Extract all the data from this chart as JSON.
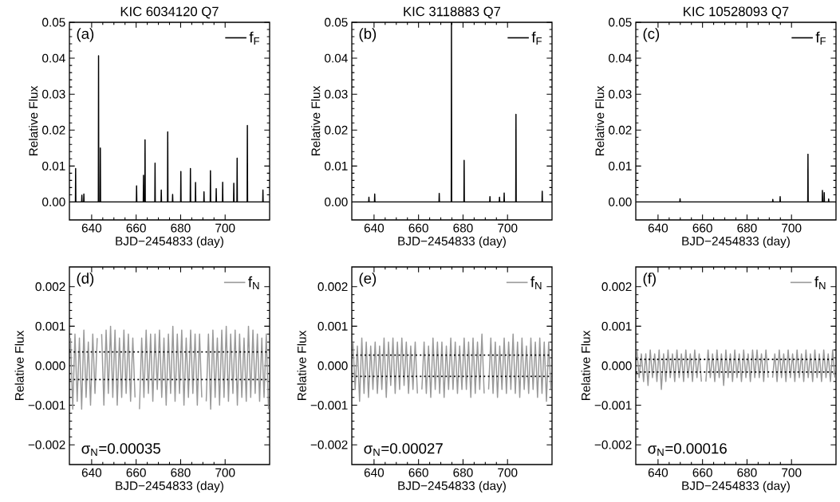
{
  "chart_data": [
    {
      "type": "line",
      "title": "KIC 6034120  Q7",
      "xlabel": "BJD−2454833 (day)",
      "ylabel": "Relative Flux",
      "xlim": [
        630,
        720
      ],
      "ylim": [
        -0.005,
        0.05
      ],
      "xticks": [
        640,
        660,
        680,
        700
      ],
      "yticks": [
        {
          "value": 0,
          "label": "0.00"
        },
        {
          "value": 0.01,
          "label": "0.01"
        },
        {
          "value": 0.02,
          "label": "0.02"
        },
        {
          "value": 0.03,
          "label": "0.03"
        },
        {
          "value": 0.04,
          "label": "0.04"
        },
        {
          "value": 0.05,
          "label": "0.05"
        }
      ],
      "legend": "top right",
      "annotations": [
        "(a)"
      ],
      "x": [
        630.2,
        632.7,
        632.8,
        632.9,
        635.5,
        635.6,
        635.7,
        636.4,
        636.5,
        636.6,
        643.0,
        643.1,
        643.2,
        643.8,
        643.9,
        644.0,
        660.1,
        660.2,
        660.3,
        663.2,
        663.3,
        663.4,
        663.9,
        664.0,
        664.1,
        668.4,
        668.5,
        668.6,
        671.2,
        671.3,
        671.4,
        674.1,
        674.2,
        674.3,
        676.3,
        676.4,
        676.5,
        680.0,
        680.1,
        680.2,
        684.3,
        684.4,
        684.5,
        686.6,
        686.7,
        686.8,
        690.4,
        690.5,
        690.6,
        693.3,
        693.4,
        693.5,
        695.9,
        696.0,
        696.1,
        698.8,
        698.9,
        699.0,
        703.8,
        703.9,
        704.0,
        705.3,
        705.4,
        705.5,
        709.9,
        710.0,
        710.1,
        716.9,
        717.0,
        717.1,
        719.8
      ],
      "series": [
        {
          "name": "f$_{F}$",
          "color": "#000000",
          "values": [
            0,
            0,
            0.0093,
            0,
            0,
            0.0019,
            0,
            0,
            0.0022,
            0,
            0,
            0.0407,
            0,
            0,
            0.015,
            0,
            0,
            0.0045,
            0,
            0,
            0.0074,
            0,
            0,
            0.0173,
            0,
            0,
            0.0108,
            0,
            0,
            0.0033,
            0,
            0,
            0.0195,
            0,
            0,
            0.0021,
            0,
            0,
            0.0085,
            0,
            0,
            0.0093,
            0,
            0,
            0.0054,
            0,
            0,
            0.0028,
            0,
            0,
            0.0087,
            0,
            0,
            0.0037,
            0,
            0,
            0.0055,
            0,
            0,
            0.0052,
            0,
            0,
            0.0122,
            0,
            0,
            0.0213,
            0,
            0,
            0.0033,
            0,
            0
          ]
        }
      ]
    },
    {
      "type": "line",
      "title": "KIC 3118883  Q7",
      "xlabel": "BJD−2454833 (day)",
      "ylabel": "Relative Flux",
      "xlim": [
        630,
        720
      ],
      "ylim": [
        -0.005,
        0.05
      ],
      "xticks": [
        640,
        660,
        680,
        700
      ],
      "yticks": [
        {
          "value": 0,
          "label": "0.00"
        },
        {
          "value": 0.01,
          "label": "0.01"
        },
        {
          "value": 0.02,
          "label": "0.02"
        },
        {
          "value": 0.03,
          "label": "0.03"
        },
        {
          "value": 0.04,
          "label": "0.04"
        },
        {
          "value": 0.05,
          "label": "0.05"
        }
      ],
      "legend": "top right",
      "annotations": [
        "(b)"
      ],
      "x": [
        630.2,
        637.6,
        637.7,
        637.8,
        640.2,
        640.3,
        640.4,
        669.2,
        669.3,
        669.4,
        674.7,
        674.8,
        674.9,
        680.4,
        680.5,
        680.6,
        692.0,
        692.1,
        692.2,
        696.3,
        696.4,
        696.5,
        698.4,
        698.5,
        698.6,
        703.7,
        703.8,
        703.9,
        715.5,
        715.6,
        715.7,
        719.8
      ],
      "series": [
        {
          "name": "f$_{F}$",
          "color": "#000000",
          "values": [
            0,
            0,
            0.0013,
            0,
            0,
            0.0022,
            0,
            0,
            0.0024,
            0,
            0,
            0.05,
            0,
            0,
            0.0116,
            0,
            0,
            0.0015,
            0,
            0,
            0.0013,
            0,
            0,
            0.0025,
            0,
            0,
            0.0244,
            0,
            0,
            0.003,
            0,
            0
          ]
        }
      ]
    },
    {
      "type": "line",
      "title": "KIC 10528093  Q7",
      "xlabel": "BJD−2454833 (day)",
      "ylabel": "Relative Flux",
      "xlim": [
        630,
        720
      ],
      "ylim": [
        -0.005,
        0.05
      ],
      "xticks": [
        640,
        660,
        680,
        700
      ],
      "yticks": [
        {
          "value": 0,
          "label": "0.00"
        },
        {
          "value": 0.01,
          "label": "0.01"
        },
        {
          "value": 0.02,
          "label": "0.02"
        },
        {
          "value": 0.03,
          "label": "0.03"
        },
        {
          "value": 0.04,
          "label": "0.04"
        },
        {
          "value": 0.05,
          "label": "0.05"
        }
      ],
      "legend": "top right",
      "annotations": [
        "(c)"
      ],
      "x": [
        630.2,
        649.8,
        649.9,
        650.0,
        691.5,
        691.6,
        691.7,
        694.8,
        694.9,
        695.0,
        707.3,
        707.4,
        707.5,
        713.8,
        713.9,
        714.0,
        714.6,
        714.7,
        714.8,
        716.6,
        716.7,
        716.8,
        719.8
      ],
      "series": [
        {
          "name": "f$_{F}$",
          "color": "#000000",
          "values": [
            0,
            0,
            0.0009,
            0,
            0,
            0.0007,
            0,
            0,
            0.0015,
            0,
            0,
            0.0133,
            0,
            0,
            0.0032,
            0,
            0,
            0.0026,
            0,
            0,
            0.0008,
            0,
            0
          ]
        }
      ]
    },
    {
      "type": "line",
      "xlabel": "BJD−2454833 (day)",
      "ylabel": "Relative Flux",
      "xlim": [
        630,
        720
      ],
      "ylim": [
        -0.0025,
        0.0025
      ],
      "xticks": [
        640,
        660,
        680,
        700
      ],
      "yticks": [
        {
          "value": -0.002,
          "label": "−0.002"
        },
        {
          "value": -0.001,
          "label": "−0.001"
        },
        {
          "value": 0,
          "label": "0.000"
        },
        {
          "value": 0.001,
          "label": "0.001"
        },
        {
          "value": 0.002,
          "label": "0.002"
        }
      ],
      "legend": "top right",
      "annotations": [
        "(d)",
        "σ$_{N}$=0.00035"
      ],
      "ref_lines": [
        {
          "axis": "y",
          "value": 0.00035,
          "color": "#000000",
          "line_style": "dotted"
        },
        {
          "axis": "y",
          "value": -0.00035,
          "color": "#000000",
          "line_style": "dotted"
        }
      ],
      "x": [
        630.5,
        631.5,
        632.5,
        633.5,
        634.5,
        635.5,
        636.5,
        637.5,
        638.5,
        639.5,
        640.5,
        641.5,
        642.5,
        643.5,
        644.5,
        645.5,
        646.5,
        647.5,
        648.5,
        649.5,
        650.5,
        651.5,
        652.5,
        653.5,
        654.5,
        655.5,
        656.5,
        657.5,
        658.5,
        659.5,
        660.5,
        661.5,
        662.5,
        663.5,
        664.5,
        665.5,
        666.5,
        667.5,
        668.5,
        669.5,
        670.5,
        671.5,
        672.5,
        673.5,
        674.5,
        675.5,
        676.5,
        677.5,
        678.5,
        679.5,
        680.5,
        681.5,
        682.5,
        683.5,
        684.5,
        685.5,
        686.5,
        687.5,
        688.5,
        689.5,
        690.5,
        691.5,
        692.5,
        693.5,
        694.5,
        695.5,
        696.5,
        697.5,
        698.5,
        699.5,
        700.5,
        701.5,
        702.5,
        703.5,
        704.5,
        705.5,
        706.5,
        707.5,
        708.5,
        709.5,
        710.5,
        711.5,
        712.5,
        713.5,
        714.5,
        715.5,
        716.5,
        717.5,
        718.5,
        719.5
      ],
      "series": [
        {
          "name": "f$_{N}$",
          "color": "#999999",
          "values": [
            0.0007,
            -0.0011,
            0.0008,
            -0.0009,
            0.0007,
            -0.0011,
            0.0009,
            -0.0008,
            0.0006,
            -0.001,
            0.0008,
            -0.0007,
            0.0007,
            null,
            0.0008,
            -0.001,
            0.0009,
            -0.0007,
            0.001,
            -0.0008,
            0.0009,
            -0.001,
            0.0007,
            -0.0008,
            0.0009,
            -0.0007,
            0.0008,
            -0.0009,
            0.0007,
            -0.0008,
            null,
            -0.0011,
            0.0007,
            -0.0008,
            0.0009,
            -0.0007,
            0.0008,
            -0.0009,
            0.0008,
            -0.0006,
            0.0009,
            -0.0008,
            0.0007,
            -0.001,
            0.0008,
            -0.0007,
            0.001,
            -0.0009,
            0.0008,
            -0.0007,
            0.0009,
            -0.001,
            0.0007,
            -0.0008,
            0.0009,
            -0.0007,
            0.0008,
            -0.001,
            0.0008,
            -0.0008,
            null,
            -0.0009,
            0.0008,
            -0.0011,
            0.0009,
            -0.0008,
            0.0007,
            -0.001,
            0.0009,
            -0.0008,
            0.001,
            -0.0009,
            0.0008,
            -0.0007,
            0.0009,
            -0.001,
            0.0008,
            -0.0008,
            0.0007,
            -0.0009,
            0.001,
            -0.0008,
            0.0009,
            -0.0007,
            0.0008,
            -0.0009,
            0.0007,
            -0.0008,
            0.0008,
            -0.0011
          ]
        }
      ]
    },
    {
      "type": "line",
      "xlabel": "BJD−2454833 (day)",
      "ylabel": "Relative Flux",
      "xlim": [
        630,
        720
      ],
      "ylim": [
        -0.0025,
        0.0025
      ],
      "xticks": [
        640,
        660,
        680,
        700
      ],
      "yticks": [
        {
          "value": -0.002,
          "label": "−0.002"
        },
        {
          "value": -0.001,
          "label": "−0.001"
        },
        {
          "value": 0,
          "label": "0.000"
        },
        {
          "value": 0.001,
          "label": "0.001"
        },
        {
          "value": 0.002,
          "label": "0.002"
        }
      ],
      "legend": "top right",
      "annotations": [
        "(e)",
        "σ$_{N}$=0.00027"
      ],
      "ref_lines": [
        {
          "axis": "y",
          "value": 0.00027,
          "color": "#000000",
          "line_style": "dotted"
        },
        {
          "axis": "y",
          "value": -0.00027,
          "color": "#000000",
          "line_style": "dotted"
        }
      ],
      "x": [
        630.5,
        631.5,
        632.5,
        633.5,
        634.5,
        635.5,
        636.5,
        637.5,
        638.5,
        639.5,
        640.5,
        641.5,
        642.5,
        643.5,
        644.5,
        645.5,
        646.5,
        647.5,
        648.5,
        649.5,
        650.5,
        651.5,
        652.5,
        653.5,
        654.5,
        655.5,
        656.5,
        657.5,
        658.5,
        659.5,
        660.5,
        661.5,
        662.5,
        663.5,
        664.5,
        665.5,
        666.5,
        667.5,
        668.5,
        669.5,
        670.5,
        671.5,
        672.5,
        673.5,
        674.5,
        675.5,
        676.5,
        677.5,
        678.5,
        679.5,
        680.5,
        681.5,
        682.5,
        683.5,
        684.5,
        685.5,
        686.5,
        687.5,
        688.5,
        689.5,
        690.5,
        691.5,
        692.5,
        693.5,
        694.5,
        695.5,
        696.5,
        697.5,
        698.5,
        699.5,
        700.5,
        701.5,
        702.5,
        703.5,
        704.5,
        705.5,
        706.5,
        707.5,
        708.5,
        709.5,
        710.5,
        711.5,
        712.5,
        713.5,
        714.5,
        715.5,
        716.5,
        717.5,
        718.5,
        719.5
      ],
      "series": [
        {
          "name": "f$_{N}$",
          "color": "#999999",
          "values": [
            0.0006,
            -0.0006,
            0.0005,
            -0.0009,
            0.0007,
            -0.0007,
            0.0006,
            -0.0008,
            0.0005,
            -0.0006,
            0.0006,
            -0.0007,
            0.0005,
            -0.0006,
            0.0007,
            -0.0008,
            0.0006,
            -0.0005,
            0.0007,
            -0.0007,
            0.0006,
            -0.0006,
            0.0007,
            -0.0005,
            0.0006,
            -0.0007,
            0.0005,
            -0.0006,
            0.0006,
            -0.0007,
            null,
            -0.0006,
            0.0006,
            -0.0007,
            0.0005,
            -0.0008,
            0.0007,
            -0.0006,
            0.0006,
            -0.0007,
            0.0006,
            -0.0008,
            0.0005,
            -0.0006,
            0.0007,
            -0.0006,
            0.0006,
            -0.0007,
            0.0005,
            -0.0006,
            0.0007,
            -0.0006,
            0.0006,
            -0.0008,
            0.0007,
            -0.0007,
            0.0006,
            -0.0006,
            0.0008,
            -0.0007,
            null,
            -0.0006,
            0.0007,
            -0.0007,
            0.0006,
            -0.0008,
            0.0005,
            -0.0006,
            0.0007,
            -0.0007,
            0.0006,
            -0.0006,
            0.0008,
            -0.0007,
            0.0006,
            -0.0008,
            0.0007,
            -0.0006,
            0.0005,
            -0.0007,
            0.0007,
            -0.0006,
            0.0006,
            -0.0008,
            0.0007,
            -0.0007,
            0.0006,
            -0.0009,
            0.0006,
            -0.0006
          ]
        }
      ]
    },
    {
      "type": "line",
      "xlabel": "BJD−2454833 (day)",
      "ylabel": "Relative Flux",
      "xlim": [
        630,
        720
      ],
      "ylim": [
        -0.0025,
        0.0025
      ],
      "xticks": [
        640,
        660,
        680,
        700
      ],
      "yticks": [
        {
          "value": -0.002,
          "label": "−0.002"
        },
        {
          "value": -0.001,
          "label": "−0.001"
        },
        {
          "value": 0,
          "label": "0.000"
        },
        {
          "value": 0.001,
          "label": "0.001"
        },
        {
          "value": 0.002,
          "label": "0.002"
        }
      ],
      "legend": "top right",
      "annotations": [
        "(f)",
        "σ$_{N}$=0.00016"
      ],
      "ref_lines": [
        {
          "axis": "y",
          "value": 0.00016,
          "color": "#000000",
          "line_style": "dotted"
        },
        {
          "axis": "y",
          "value": -0.00016,
          "color": "#000000",
          "line_style": "dotted"
        }
      ],
      "x": [
        630.5,
        631.5,
        632.5,
        633.5,
        634.5,
        635.5,
        636.5,
        637.5,
        638.5,
        639.5,
        640.5,
        641.5,
        642.5,
        643.5,
        644.5,
        645.5,
        646.5,
        647.5,
        648.5,
        649.5,
        650.5,
        651.5,
        652.5,
        653.5,
        654.5,
        655.5,
        656.5,
        657.5,
        658.5,
        659.5,
        660.5,
        661.5,
        662.5,
        663.5,
        664.5,
        665.5,
        666.5,
        667.5,
        668.5,
        669.5,
        670.5,
        671.5,
        672.5,
        673.5,
        674.5,
        675.5,
        676.5,
        677.5,
        678.5,
        679.5,
        680.5,
        681.5,
        682.5,
        683.5,
        684.5,
        685.5,
        686.5,
        687.5,
        688.5,
        689.5,
        690.5,
        691.5,
        692.5,
        693.5,
        694.5,
        695.5,
        696.5,
        697.5,
        698.5,
        699.5,
        700.5,
        701.5,
        702.5,
        703.5,
        704.5,
        705.5,
        706.5,
        707.5,
        708.5,
        709.5,
        710.5,
        711.5,
        712.5,
        713.5,
        714.5,
        715.5,
        716.5,
        717.5,
        718.5,
        719.5
      ],
      "series": [
        {
          "name": "f$_{N}$",
          "color": "#999999",
          "values": [
            0.0004,
            -0.0003,
            0.0003,
            -0.0004,
            0.0003,
            -0.0005,
            0.0004,
            -0.0003,
            0.0003,
            -0.0004,
            0.0004,
            -0.0006,
            0.0003,
            -0.0004,
            0.0004,
            -0.0003,
            0.0003,
            -0.0004,
            0.0004,
            -0.0003,
            0.0003,
            -0.0004,
            0.0004,
            -0.0003,
            0.0003,
            -0.0004,
            0.0004,
            -0.0003,
            0.0003,
            -0.0004,
            null,
            -0.0004,
            0.0004,
            -0.0003,
            0.0003,
            -0.0004,
            0.0004,
            -0.0003,
            0.0003,
            -0.0005,
            0.0004,
            -0.0003,
            0.0003,
            -0.0004,
            0.0004,
            -0.0003,
            0.0003,
            -0.0004,
            0.0004,
            -0.0003,
            0.0003,
            -0.0004,
            0.0004,
            -0.0003,
            0.0004,
            -0.0003,
            0.0003,
            -0.0004,
            0.0004,
            -0.0003,
            null,
            -0.0003,
            0.0003,
            -0.0004,
            0.0004,
            -0.0003,
            0.0003,
            -0.0004,
            0.0004,
            -0.0003,
            0.0003,
            -0.0004,
            0.0004,
            -0.0003,
            0.0003,
            -0.0004,
            0.0004,
            -0.0003,
            0.0003,
            -0.0004,
            0.0004,
            -0.0003,
            0.0003,
            -0.0004,
            0.0004,
            -0.0003,
            0.0003,
            -0.0004,
            0.0004,
            -0.0003
          ]
        }
      ]
    }
  ]
}
